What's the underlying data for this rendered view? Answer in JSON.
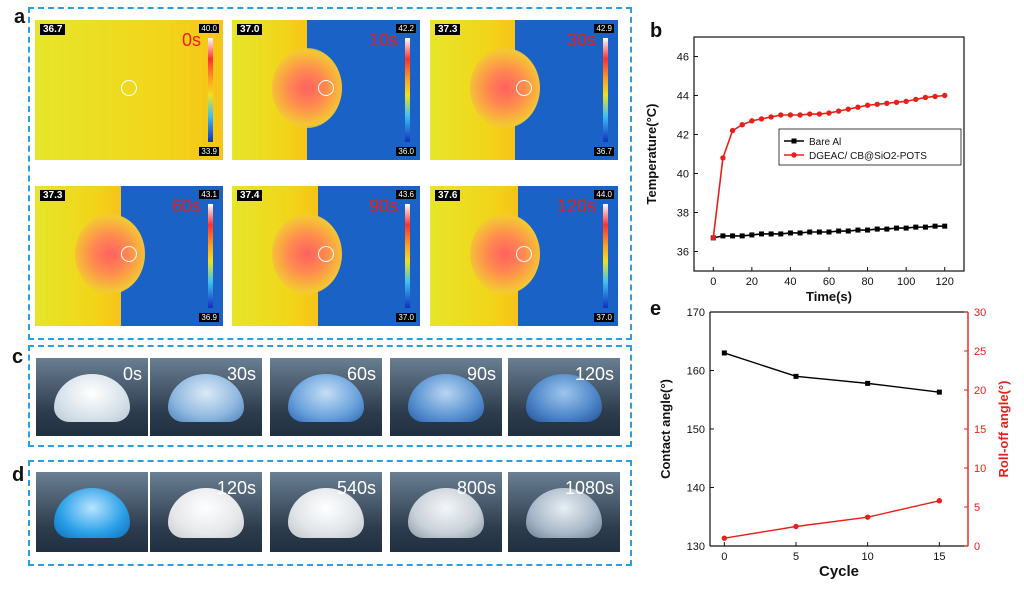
{
  "panels": {
    "a": "a",
    "b": "b",
    "c": "c",
    "d": "d",
    "e": "e"
  },
  "thermal": [
    {
      "time": "0s",
      "readout": "36.7",
      "scale_max": "40.0",
      "scale_min": "33.9"
    },
    {
      "time": "10s",
      "readout": "37.0",
      "scale_max": "42.2",
      "scale_min": "36.0"
    },
    {
      "time": "30s",
      "readout": "37.3",
      "scale_max": "42.9",
      "scale_min": "36.7"
    },
    {
      "time": "60s",
      "readout": "37.3",
      "scale_max": "43.1",
      "scale_min": "36.9"
    },
    {
      "time": "90s",
      "readout": "37.4",
      "scale_max": "43.6",
      "scale_min": "37.0"
    },
    {
      "time": "120s",
      "readout": "37.6",
      "scale_max": "44.0",
      "scale_min": "37.0"
    }
  ],
  "droplets_c": [
    "0s",
    "30s",
    "60s",
    "90s",
    "120s"
  ],
  "droplets_d": [
    "",
    "120s",
    "540s",
    "800s",
    "1080s"
  ],
  "chart_data": [
    {
      "type": "line",
      "panel": "b",
      "xlabel": "Time(s)",
      "ylabel": "Temperature(°C)",
      "xlim": [
        -10,
        130
      ],
      "ylim": [
        35,
        47
      ],
      "xticks": [
        0,
        20,
        40,
        60,
        80,
        100,
        120
      ],
      "yticks": [
        36,
        38,
        40,
        42,
        44,
        46
      ],
      "legend_position": "right",
      "series": [
        {
          "name": "Bare Al",
          "color": "#000000",
          "marker": "square",
          "x": [
            0,
            5,
            10,
            15,
            20,
            25,
            30,
            35,
            40,
            45,
            50,
            55,
            60,
            65,
            70,
            75,
            80,
            85,
            90,
            95,
            100,
            105,
            110,
            115,
            120
          ],
          "y": [
            36.7,
            36.8,
            36.8,
            36.8,
            36.85,
            36.9,
            36.9,
            36.9,
            36.95,
            36.95,
            37.0,
            37.0,
            37.0,
            37.05,
            37.05,
            37.1,
            37.1,
            37.15,
            37.15,
            37.2,
            37.2,
            37.25,
            37.25,
            37.3,
            37.3
          ]
        },
        {
          "name": "DGEAC/ CB@SiO2-POTS",
          "color": "#e8201a",
          "marker": "circle",
          "x": [
            0,
            5,
            10,
            15,
            20,
            25,
            30,
            35,
            40,
            45,
            50,
            55,
            60,
            65,
            70,
            75,
            80,
            85,
            90,
            95,
            100,
            105,
            110,
            115,
            120
          ],
          "y": [
            36.7,
            40.8,
            42.2,
            42.5,
            42.7,
            42.8,
            42.9,
            43.0,
            43.0,
            43.0,
            43.05,
            43.05,
            43.1,
            43.2,
            43.3,
            43.4,
            43.5,
            43.55,
            43.6,
            43.65,
            43.7,
            43.8,
            43.9,
            43.95,
            44.0
          ]
        }
      ]
    },
    {
      "type": "line",
      "panel": "e",
      "xlabel": "Cycle",
      "ylabel": "Contact angle(°)",
      "ylabel_right": "Roll-off angle(°)",
      "xlim": [
        -1,
        17
      ],
      "ylim": [
        130,
        170
      ],
      "ylim_right": [
        0,
        30
      ],
      "xticks": [
        0,
        5,
        10,
        15
      ],
      "yticks": [
        130,
        140,
        150,
        160,
        170
      ],
      "yticks_right": [
        0,
        5,
        10,
        15,
        20,
        25,
        30
      ],
      "series": [
        {
          "name": "Contact angle",
          "axis": "left",
          "color": "#000000",
          "marker": "square",
          "x": [
            0,
            5,
            10,
            15
          ],
          "y": [
            163,
            159,
            157.8,
            156.3
          ]
        },
        {
          "name": "Roll-off angle",
          "axis": "right",
          "color": "#e8201a",
          "marker": "circle",
          "x": [
            0,
            5,
            10,
            15
          ],
          "y": [
            1,
            2.5,
            3.7,
            5.8
          ]
        }
      ]
    }
  ]
}
